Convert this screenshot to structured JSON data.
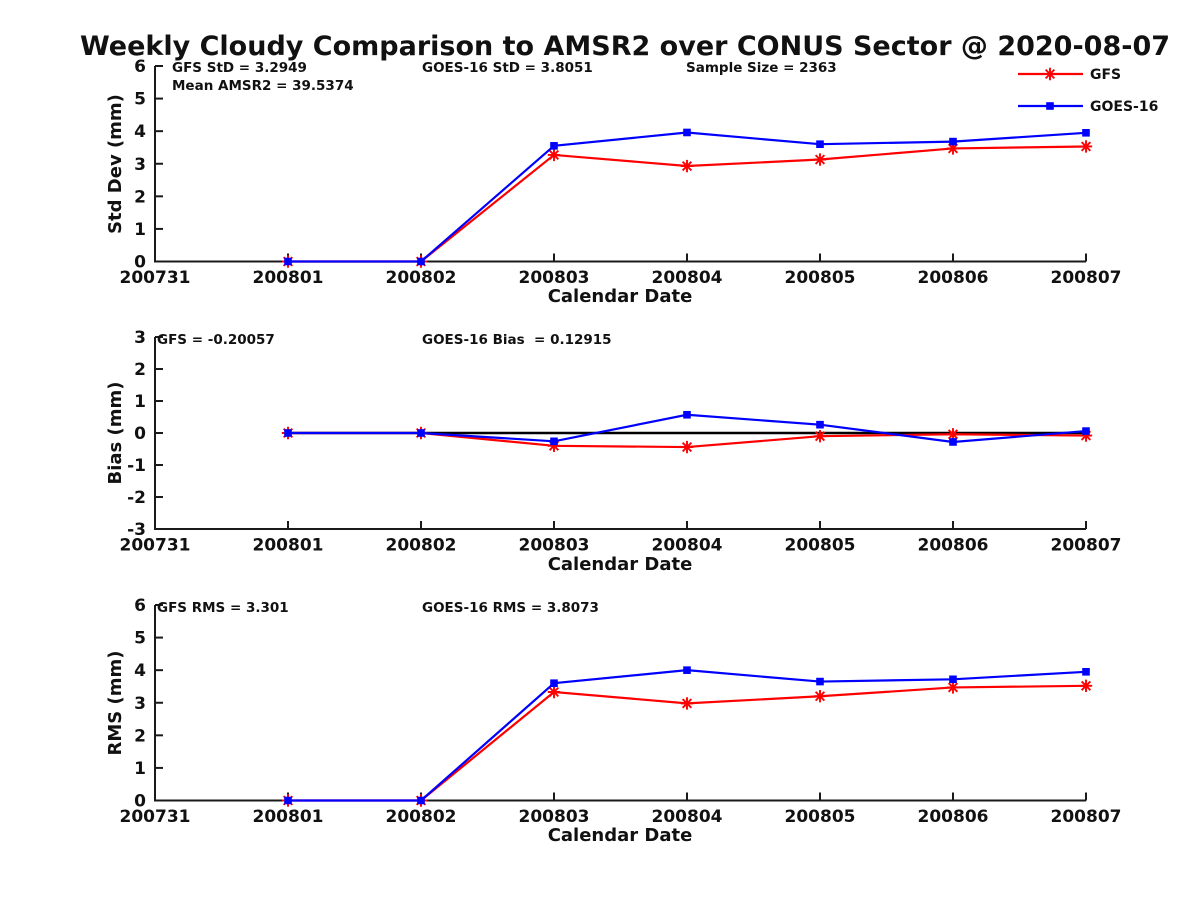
{
  "title": "Weekly Cloudy Comparison to AMSR2 over CONUS Sector @ 2020-08-07",
  "legend": {
    "items": [
      {
        "label": "GFS",
        "marker": "asterisk"
      },
      {
        "label": "GOES-16",
        "marker": "square"
      }
    ]
  },
  "colors": {
    "gfs": "#ff0000",
    "goes16": "#0000ff",
    "axis": "#1a1a1a",
    "zero_line": "#000000"
  },
  "chart_data": [
    {
      "type": "line",
      "panel": "std_dev",
      "ylabel": "Std Dev (mm)",
      "xlabel": "Calendar Date",
      "ylim": [
        0,
        6
      ],
      "yticks": [
        0,
        1,
        2,
        3,
        4,
        5,
        6
      ],
      "grid": false,
      "xtick_labels": [
        "200731",
        "200801",
        "200802",
        "200803",
        "200804",
        "200805",
        "200806",
        "200807"
      ],
      "annotations": [
        "GFS StD = 3.2949",
        "Mean AMSR2 = 39.5374",
        "GOES-16 StD = 3.8051",
        "Sample Size = 2363"
      ],
      "x_dates": [
        "200801",
        "200802",
        "200803",
        "200804",
        "200805",
        "200806",
        "200807"
      ],
      "series": [
        {
          "name": "GFS",
          "values": [
            0,
            0,
            3.27,
            2.93,
            3.13,
            3.47,
            3.53
          ]
        },
        {
          "name": "GOES-16",
          "values": [
            0,
            0,
            3.55,
            3.96,
            3.6,
            3.68,
            3.95
          ]
        }
      ]
    },
    {
      "type": "line",
      "panel": "bias",
      "ylabel": "Bias (mm)",
      "xlabel": "Calendar Date",
      "ylim": [
        -3,
        3
      ],
      "yticks": [
        3,
        2,
        1,
        0,
        -1,
        -2,
        -3
      ],
      "grid": false,
      "zero_line": true,
      "xtick_labels": [
        "200731",
        "200801",
        "200802",
        "200803",
        "200804",
        "200805",
        "200806",
        "200807"
      ],
      "annotations": [
        "GFS = -0.20057",
        "GOES-16 Bias  = 0.12915"
      ],
      "x_dates": [
        "200801",
        "200802",
        "200803",
        "200804",
        "200805",
        "200806",
        "200807"
      ],
      "series": [
        {
          "name": "GFS",
          "values": [
            0,
            0,
            -0.4,
            -0.44,
            -0.1,
            -0.04,
            -0.08
          ]
        },
        {
          "name": "GOES-16",
          "values": [
            0,
            0,
            -0.26,
            0.57,
            0.26,
            -0.28,
            0.06
          ]
        }
      ]
    },
    {
      "type": "line",
      "panel": "rms",
      "ylabel": "RMS (mm)",
      "xlabel": "Calendar Date",
      "ylim": [
        0,
        6
      ],
      "yticks": [
        0,
        1,
        2,
        3,
        4,
        5,
        6
      ],
      "grid": false,
      "xtick_labels": [
        "200731",
        "200801",
        "200802",
        "200803",
        "200804",
        "200805",
        "200806",
        "200807"
      ],
      "annotations": [
        "GFS RMS = 3.301",
        "GOES-16 RMS = 3.8073"
      ],
      "x_dates": [
        "200801",
        "200802",
        "200803",
        "200804",
        "200805",
        "200806",
        "200807"
      ],
      "series": [
        {
          "name": "GFS",
          "values": [
            0,
            0,
            3.33,
            2.98,
            3.2,
            3.47,
            3.52
          ]
        },
        {
          "name": "GOES-16",
          "values": [
            0,
            0,
            3.6,
            4.0,
            3.65,
            3.72,
            3.95
          ]
        }
      ]
    }
  ]
}
